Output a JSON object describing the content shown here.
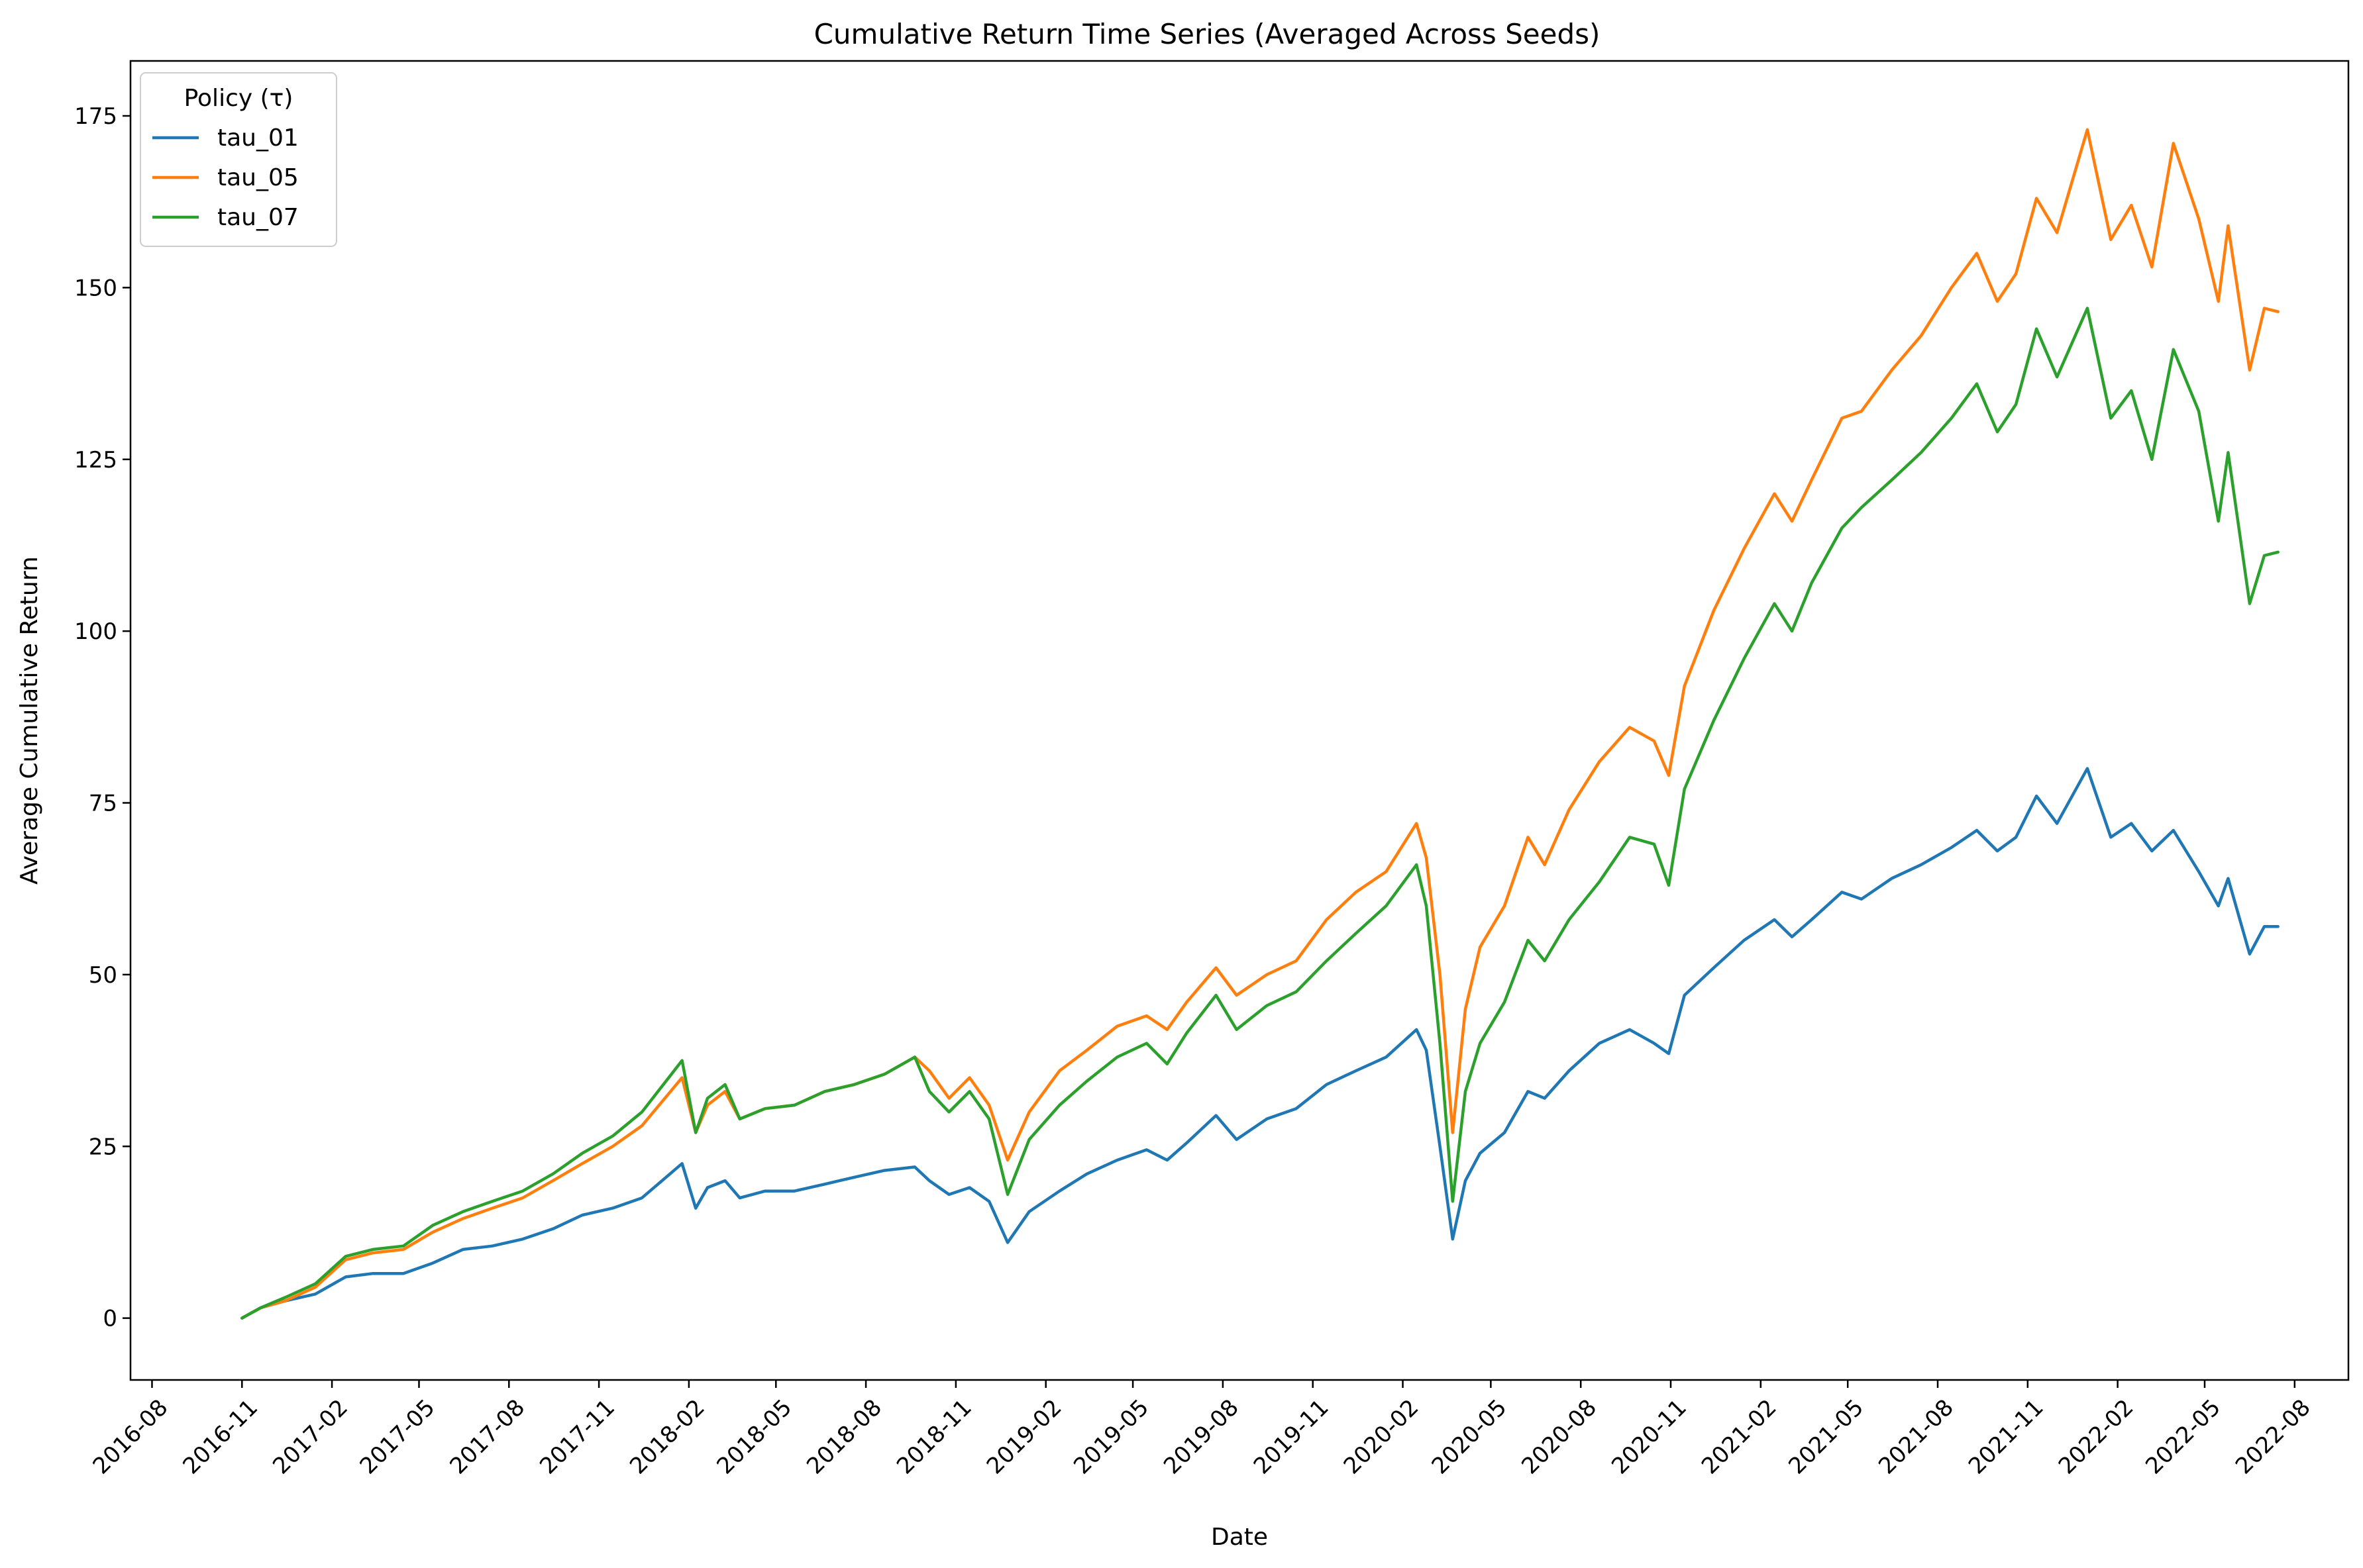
{
  "chart_data": {
    "type": "line",
    "title": "Cumulative Return Time Series (Averaged Across Seeds)",
    "xlabel": "Date",
    "ylabel": "Average Cumulative Return",
    "xlim": [
      "2016-07-10",
      "2022-09-25"
    ],
    "ylim": [
      -9,
      183
    ],
    "x_ticks": [
      "2016-08",
      "2016-11",
      "2017-02",
      "2017-05",
      "2017-08",
      "2017-11",
      "2018-02",
      "2018-05",
      "2018-08",
      "2018-11",
      "2019-02",
      "2019-05",
      "2019-08",
      "2019-11",
      "2020-02",
      "2020-05",
      "2020-08",
      "2020-11",
      "2021-02",
      "2021-05",
      "2021-08",
      "2021-11",
      "2022-02",
      "2022-05",
      "2022-08"
    ],
    "y_ticks": [
      0,
      25,
      50,
      75,
      100,
      125,
      150,
      175
    ],
    "grid": false,
    "legend": {
      "title": "Policy (τ)",
      "placement": "top-left"
    },
    "series": [
      {
        "name": "tau_01",
        "color": "#1f77b4",
        "points": [
          [
            "2016-11-01",
            0
          ],
          [
            "2016-11-20",
            1.5
          ],
          [
            "2016-12-15",
            2.5
          ],
          [
            "2017-01-15",
            3.5
          ],
          [
            "2017-02-15",
            6
          ],
          [
            "2017-03-15",
            6.5
          ],
          [
            "2017-04-15",
            6.5
          ],
          [
            "2017-05-15",
            8
          ],
          [
            "2017-06-15",
            10
          ],
          [
            "2017-07-15",
            10.5
          ],
          [
            "2017-08-15",
            11.5
          ],
          [
            "2017-09-15",
            13
          ],
          [
            "2017-10-15",
            15
          ],
          [
            "2017-11-15",
            16
          ],
          [
            "2017-12-15",
            17.5
          ],
          [
            "2018-01-25",
            22.5
          ],
          [
            "2018-02-08",
            16
          ],
          [
            "2018-02-20",
            19
          ],
          [
            "2018-03-10",
            20
          ],
          [
            "2018-03-25",
            17.5
          ],
          [
            "2018-04-20",
            18.5
          ],
          [
            "2018-05-20",
            18.5
          ],
          [
            "2018-06-20",
            19.5
          ],
          [
            "2018-07-20",
            20.5
          ],
          [
            "2018-08-20",
            21.5
          ],
          [
            "2018-09-20",
            22
          ],
          [
            "2018-10-05",
            20
          ],
          [
            "2018-10-25",
            18
          ],
          [
            "2018-11-15",
            19
          ],
          [
            "2018-12-05",
            17
          ],
          [
            "2018-12-24",
            11
          ],
          [
            "2019-01-15",
            15.5
          ],
          [
            "2019-02-15",
            18.5
          ],
          [
            "2019-03-15",
            21
          ],
          [
            "2019-04-15",
            23
          ],
          [
            "2019-05-15",
            24.5
          ],
          [
            "2019-06-05",
            23
          ],
          [
            "2019-06-25",
            25.5
          ],
          [
            "2019-07-25",
            29.5
          ],
          [
            "2019-08-15",
            26
          ],
          [
            "2019-09-15",
            29
          ],
          [
            "2019-10-15",
            30.5
          ],
          [
            "2019-11-15",
            34
          ],
          [
            "2019-12-15",
            36
          ],
          [
            "2020-01-15",
            38
          ],
          [
            "2020-02-15",
            42
          ],
          [
            "2020-02-25",
            39
          ],
          [
            "2020-03-10",
            25
          ],
          [
            "2020-03-23",
            11.5
          ],
          [
            "2020-04-05",
            20
          ],
          [
            "2020-04-20",
            24
          ],
          [
            "2020-05-15",
            27
          ],
          [
            "2020-06-08",
            33
          ],
          [
            "2020-06-25",
            32
          ],
          [
            "2020-07-20",
            36
          ],
          [
            "2020-08-20",
            40
          ],
          [
            "2020-09-20",
            42
          ],
          [
            "2020-10-15",
            40
          ],
          [
            "2020-10-30",
            38.5
          ],
          [
            "2020-11-15",
            47
          ],
          [
            "2020-12-15",
            51
          ],
          [
            "2021-01-15",
            55
          ],
          [
            "2021-02-15",
            58
          ],
          [
            "2021-03-05",
            55.5
          ],
          [
            "2021-03-25",
            58
          ],
          [
            "2021-04-25",
            62
          ],
          [
            "2021-05-15",
            61
          ],
          [
            "2021-06-15",
            64
          ],
          [
            "2021-07-15",
            66
          ],
          [
            "2021-08-15",
            68.5
          ],
          [
            "2021-09-10",
            71
          ],
          [
            "2021-10-01",
            68
          ],
          [
            "2021-10-20",
            70
          ],
          [
            "2021-11-10",
            76
          ],
          [
            "2021-12-01",
            72
          ],
          [
            "2022-01-01",
            80
          ],
          [
            "2022-01-25",
            70
          ],
          [
            "2022-02-15",
            72
          ],
          [
            "2022-03-08",
            68
          ],
          [
            "2022-03-30",
            71
          ],
          [
            "2022-04-25",
            65
          ],
          [
            "2022-05-15",
            60
          ],
          [
            "2022-05-25",
            64
          ],
          [
            "2022-06-16",
            53
          ],
          [
            "2022-07-01",
            57
          ],
          [
            "2022-07-15",
            57
          ]
        ]
      },
      {
        "name": "tau_05",
        "color": "#ff7f0e",
        "points": [
          [
            "2016-11-01",
            0
          ],
          [
            "2016-11-20",
            1.5
          ],
          [
            "2016-12-15",
            2.5
          ],
          [
            "2017-01-15",
            4.5
          ],
          [
            "2017-02-15",
            8.5
          ],
          [
            "2017-03-15",
            9.5
          ],
          [
            "2017-04-15",
            10
          ],
          [
            "2017-05-15",
            12.5
          ],
          [
            "2017-06-15",
            14.5
          ],
          [
            "2017-07-15",
            16
          ],
          [
            "2017-08-15",
            17.5
          ],
          [
            "2017-09-15",
            20
          ],
          [
            "2017-10-15",
            22.5
          ],
          [
            "2017-11-15",
            25
          ],
          [
            "2017-12-15",
            28
          ],
          [
            "2018-01-25",
            35
          ],
          [
            "2018-02-08",
            27
          ],
          [
            "2018-02-20",
            31
          ],
          [
            "2018-03-10",
            33
          ],
          [
            "2018-03-25",
            29
          ],
          [
            "2018-04-20",
            30.5
          ],
          [
            "2018-05-20",
            31
          ],
          [
            "2018-06-20",
            33
          ],
          [
            "2018-07-20",
            34
          ],
          [
            "2018-08-20",
            35.5
          ],
          [
            "2018-09-20",
            38
          ],
          [
            "2018-10-05",
            36
          ],
          [
            "2018-10-25",
            32
          ],
          [
            "2018-11-15",
            35
          ],
          [
            "2018-12-05",
            31
          ],
          [
            "2018-12-24",
            23
          ],
          [
            "2019-01-15",
            30
          ],
          [
            "2019-02-15",
            36
          ],
          [
            "2019-03-15",
            39
          ],
          [
            "2019-04-15",
            42.5
          ],
          [
            "2019-05-15",
            44
          ],
          [
            "2019-06-05",
            42
          ],
          [
            "2019-06-25",
            46
          ],
          [
            "2019-07-25",
            51
          ],
          [
            "2019-08-15",
            47
          ],
          [
            "2019-09-15",
            50
          ],
          [
            "2019-10-15",
            52
          ],
          [
            "2019-11-15",
            58
          ],
          [
            "2019-12-15",
            62
          ],
          [
            "2020-01-15",
            65
          ],
          [
            "2020-02-15",
            72
          ],
          [
            "2020-02-25",
            67
          ],
          [
            "2020-03-10",
            50
          ],
          [
            "2020-03-23",
            27
          ],
          [
            "2020-04-05",
            45
          ],
          [
            "2020-04-20",
            54
          ],
          [
            "2020-05-15",
            60
          ],
          [
            "2020-06-08",
            70
          ],
          [
            "2020-06-25",
            66
          ],
          [
            "2020-07-20",
            74
          ],
          [
            "2020-08-20",
            81
          ],
          [
            "2020-09-20",
            86
          ],
          [
            "2020-10-15",
            84
          ],
          [
            "2020-10-30",
            79
          ],
          [
            "2020-11-15",
            92
          ],
          [
            "2020-12-15",
            103
          ],
          [
            "2021-01-15",
            112
          ],
          [
            "2021-02-15",
            120
          ],
          [
            "2021-03-05",
            116
          ],
          [
            "2021-03-25",
            122
          ],
          [
            "2021-04-25",
            131
          ],
          [
            "2021-05-15",
            132
          ],
          [
            "2021-06-15",
            138
          ],
          [
            "2021-07-15",
            143
          ],
          [
            "2021-08-15",
            150
          ],
          [
            "2021-09-10",
            155
          ],
          [
            "2021-10-01",
            148
          ],
          [
            "2021-10-20",
            152
          ],
          [
            "2021-11-10",
            163
          ],
          [
            "2021-12-01",
            158
          ],
          [
            "2022-01-01",
            173
          ],
          [
            "2022-01-25",
            157
          ],
          [
            "2022-02-15",
            162
          ],
          [
            "2022-03-08",
            153
          ],
          [
            "2022-03-30",
            171
          ],
          [
            "2022-04-25",
            160
          ],
          [
            "2022-05-15",
            148
          ],
          [
            "2022-05-25",
            159
          ],
          [
            "2022-06-16",
            138
          ],
          [
            "2022-07-01",
            147
          ],
          [
            "2022-07-15",
            146.5
          ]
        ]
      },
      {
        "name": "tau_07",
        "color": "#2ca02c",
        "points": [
          [
            "2016-11-01",
            0
          ],
          [
            "2016-11-20",
            1.5
          ],
          [
            "2016-12-15",
            3
          ],
          [
            "2017-01-15",
            5
          ],
          [
            "2017-02-15",
            9
          ],
          [
            "2017-03-15",
            10
          ],
          [
            "2017-04-15",
            10.5
          ],
          [
            "2017-05-15",
            13.5
          ],
          [
            "2017-06-15",
            15.5
          ],
          [
            "2017-07-15",
            17
          ],
          [
            "2017-08-15",
            18.5
          ],
          [
            "2017-09-15",
            21
          ],
          [
            "2017-10-15",
            24
          ],
          [
            "2017-11-15",
            26.5
          ],
          [
            "2017-12-15",
            30
          ],
          [
            "2018-01-25",
            37.5
          ],
          [
            "2018-02-08",
            27
          ],
          [
            "2018-02-20",
            32
          ],
          [
            "2018-03-10",
            34
          ],
          [
            "2018-03-25",
            29
          ],
          [
            "2018-04-20",
            30.5
          ],
          [
            "2018-05-20",
            31
          ],
          [
            "2018-06-20",
            33
          ],
          [
            "2018-07-20",
            34
          ],
          [
            "2018-08-20",
            35.5
          ],
          [
            "2018-09-20",
            38
          ],
          [
            "2018-10-05",
            33
          ],
          [
            "2018-10-25",
            30
          ],
          [
            "2018-11-15",
            33
          ],
          [
            "2018-12-05",
            29
          ],
          [
            "2018-12-24",
            18
          ],
          [
            "2019-01-15",
            26
          ],
          [
            "2019-02-15",
            31
          ],
          [
            "2019-03-15",
            34.5
          ],
          [
            "2019-04-15",
            38
          ],
          [
            "2019-05-15",
            40
          ],
          [
            "2019-06-05",
            37
          ],
          [
            "2019-06-25",
            41.5
          ],
          [
            "2019-07-25",
            47
          ],
          [
            "2019-08-15",
            42
          ],
          [
            "2019-09-15",
            45.5
          ],
          [
            "2019-10-15",
            47.5
          ],
          [
            "2019-11-15",
            52
          ],
          [
            "2019-12-15",
            56
          ],
          [
            "2020-01-15",
            60
          ],
          [
            "2020-02-15",
            66
          ],
          [
            "2020-02-25",
            60
          ],
          [
            "2020-03-10",
            40
          ],
          [
            "2020-03-23",
            17
          ],
          [
            "2020-04-05",
            33
          ],
          [
            "2020-04-20",
            40
          ],
          [
            "2020-05-15",
            46
          ],
          [
            "2020-06-08",
            55
          ],
          [
            "2020-06-25",
            52
          ],
          [
            "2020-07-20",
            58
          ],
          [
            "2020-08-20",
            63.5
          ],
          [
            "2020-09-20",
            70
          ],
          [
            "2020-10-15",
            69
          ],
          [
            "2020-10-30",
            63
          ],
          [
            "2020-11-15",
            77
          ],
          [
            "2020-12-15",
            87
          ],
          [
            "2021-01-15",
            96
          ],
          [
            "2021-02-15",
            104
          ],
          [
            "2021-03-05",
            100
          ],
          [
            "2021-03-25",
            107
          ],
          [
            "2021-04-25",
            115
          ],
          [
            "2021-05-15",
            118
          ],
          [
            "2021-06-15",
            122
          ],
          [
            "2021-07-15",
            126
          ],
          [
            "2021-08-15",
            131
          ],
          [
            "2021-09-10",
            136
          ],
          [
            "2021-10-01",
            129
          ],
          [
            "2021-10-20",
            133
          ],
          [
            "2021-11-10",
            144
          ],
          [
            "2021-12-01",
            137
          ],
          [
            "2022-01-01",
            147
          ],
          [
            "2022-01-25",
            131
          ],
          [
            "2022-02-15",
            135
          ],
          [
            "2022-03-08",
            125
          ],
          [
            "2022-03-30",
            141
          ],
          [
            "2022-04-25",
            132
          ],
          [
            "2022-05-15",
            116
          ],
          [
            "2022-05-25",
            126
          ],
          [
            "2022-06-16",
            104
          ],
          [
            "2022-07-01",
            111
          ],
          [
            "2022-07-15",
            111.5
          ]
        ]
      }
    ]
  }
}
